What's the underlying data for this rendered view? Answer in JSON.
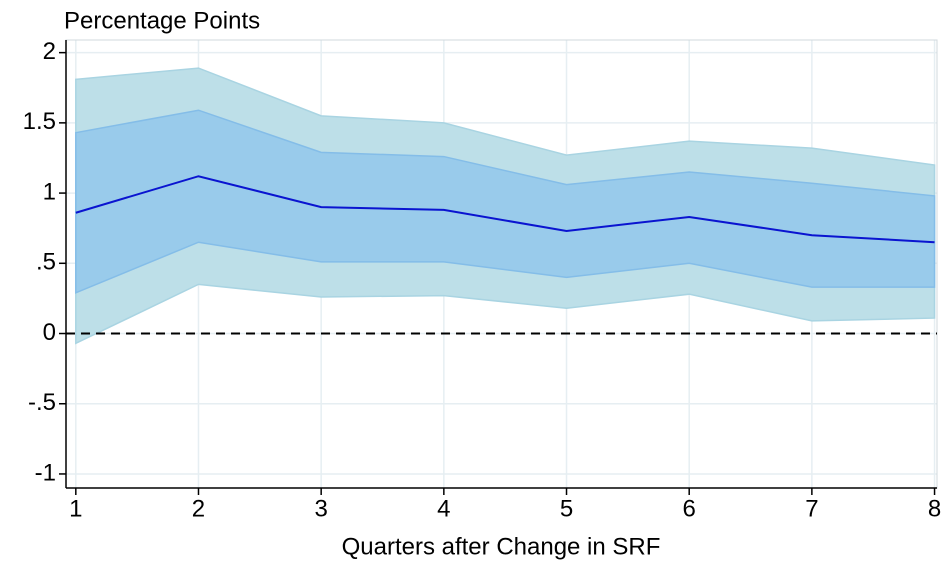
{
  "chart_data": {
    "type": "line",
    "title": "Percentage Points",
    "x_label": "Quarters after Change in SRF",
    "x": [
      1,
      2,
      3,
      4,
      5,
      6,
      7,
      8
    ],
    "series": [
      {
        "color": "#0a14d0",
        "values": [
          0.86,
          1.12,
          0.9,
          0.88,
          0.73,
          0.83,
          0.7,
          0.65
        ]
      }
    ],
    "bands": [
      {
        "color": "#bddfe8",
        "upper": [
          1.81,
          1.89,
          1.55,
          1.5,
          1.27,
          1.37,
          1.32,
          1.2
        ],
        "lower": [
          -0.07,
          0.35,
          0.26,
          0.27,
          0.18,
          0.28,
          0.09,
          0.11
        ]
      },
      {
        "color": "#99cbeb",
        "upper": [
          1.43,
          1.59,
          1.29,
          1.26,
          1.06,
          1.15,
          1.07,
          0.98
        ],
        "lower": [
          0.29,
          0.65,
          0.51,
          0.51,
          0.4,
          0.5,
          0.33,
          0.33
        ]
      }
    ],
    "hline": 0,
    "xlim": [
      0.92,
      8.02
    ],
    "ylim": [
      -1.1,
      2.09
    ],
    "xticks": [
      1,
      2,
      3,
      4,
      5,
      6,
      7,
      8
    ],
    "yticks": [
      {
        "value": -1,
        "label": "-1"
      },
      {
        "value": -0.5,
        "label": "-.5"
      },
      0,
      {
        "value": 0.5,
        "label": ".5"
      },
      1,
      1.5,
      2
    ],
    "grid": true
  }
}
